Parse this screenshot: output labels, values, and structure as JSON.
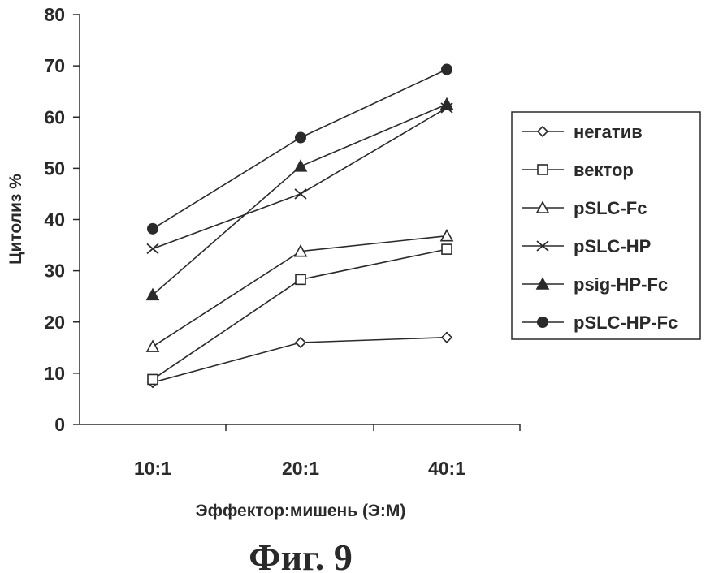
{
  "chart_data": {
    "type": "line",
    "categories": [
      "10:1",
      "20:1",
      "40:1"
    ],
    "xlabel": "Эффектор:мишень (Э:М)",
    "ylabel": "Цитолиз %",
    "ylim": [
      0,
      80
    ],
    "yticks": [
      "0",
      "10",
      "20",
      "30",
      "40",
      "50",
      "60",
      "70",
      "80"
    ],
    "grid": false,
    "legend_position": "right",
    "series": [
      {
        "name": "негатив",
        "marker": "diamond-open",
        "values": [
          8.2,
          16,
          17
        ]
      },
      {
        "name": "вектор",
        "marker": "square-open",
        "values": [
          8.8,
          28.3,
          34.2
        ]
      },
      {
        "name": "pSLC-Fc",
        "marker": "triangle-open",
        "values": [
          15.2,
          33.8,
          36.8
        ]
      },
      {
        "name": "pSLC-HP",
        "marker": "x",
        "values": [
          34.3,
          45,
          61.8
        ]
      },
      {
        "name": "psig-HP-Fc",
        "marker": "triangle-filled",
        "values": [
          25.3,
          50.4,
          62.5
        ]
      },
      {
        "name": "pSLC-HP-Fc",
        "marker": "circle-filled",
        "values": [
          38.2,
          56,
          69.3
        ]
      }
    ]
  },
  "caption": "Фиг. 9",
  "colors": {
    "ink": "#2a2a2a",
    "background": "#ffffff"
  }
}
